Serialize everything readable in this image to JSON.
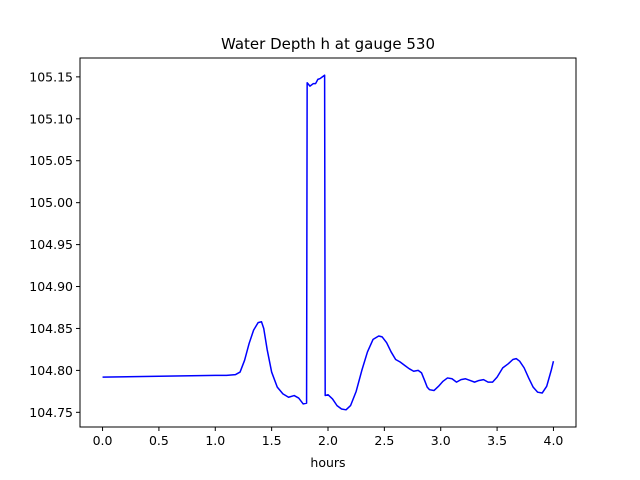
{
  "chart_data": {
    "type": "line",
    "title": "Water Depth h at gauge 530",
    "xlabel": "hours",
    "ylabel": "",
    "xlim": [
      -0.2,
      4.2
    ],
    "ylim": [
      104.7325,
      105.1725
    ],
    "xticks": [
      0.0,
      0.5,
      1.0,
      1.5,
      2.0,
      2.5,
      3.0,
      3.5,
      4.0
    ],
    "xtick_labels": [
      "0.0",
      "0.5",
      "1.0",
      "1.5",
      "2.0",
      "2.5",
      "3.0",
      "3.5",
      "4.0"
    ],
    "yticks": [
      104.75,
      104.8,
      104.85,
      104.9,
      104.95,
      105.0,
      105.05,
      105.1,
      105.15
    ],
    "ytick_labels": [
      "104.75",
      "104.80",
      "104.85",
      "104.90",
      "104.95",
      "105.00",
      "105.05",
      "105.10",
      "105.15"
    ],
    "grid": false,
    "legend": "none",
    "series": [
      {
        "color": "#0000ff",
        "x": [
          0.0,
          0.5,
          1.0,
          1.1,
          1.18,
          1.22,
          1.26,
          1.3,
          1.34,
          1.38,
          1.41,
          1.43,
          1.46,
          1.5,
          1.55,
          1.6,
          1.65,
          1.7,
          1.74,
          1.78,
          1.81,
          1.815,
          1.84,
          1.87,
          1.89,
          1.91,
          1.93,
          1.95,
          1.97,
          1.975,
          2.0,
          2.04,
          2.08,
          2.12,
          2.16,
          2.2,
          2.25,
          2.3,
          2.35,
          2.4,
          2.45,
          2.48,
          2.52,
          2.56,
          2.6,
          2.64,
          2.68,
          2.72,
          2.76,
          2.8,
          2.83,
          2.86,
          2.88,
          2.9,
          2.94,
          2.98,
          3.02,
          3.06,
          3.1,
          3.14,
          3.18,
          3.22,
          3.26,
          3.3,
          3.34,
          3.38,
          3.42,
          3.46,
          3.5,
          3.55,
          3.6,
          3.64,
          3.67,
          3.7,
          3.74,
          3.78,
          3.82,
          3.86,
          3.9,
          3.94,
          3.98,
          4.0
        ],
        "y": [
          104.792,
          104.793,
          104.794,
          104.794,
          104.795,
          104.798,
          104.812,
          104.832,
          104.848,
          104.857,
          104.858,
          104.85,
          104.825,
          104.798,
          104.78,
          104.772,
          104.768,
          104.77,
          104.767,
          104.76,
          104.761,
          105.143,
          105.139,
          105.142,
          105.142,
          105.147,
          105.148,
          105.15,
          105.152,
          104.77,
          104.771,
          104.766,
          104.758,
          104.754,
          104.753,
          104.758,
          104.775,
          104.8,
          104.822,
          104.837,
          104.841,
          104.84,
          104.833,
          104.822,
          104.813,
          104.81,
          104.806,
          104.802,
          104.799,
          104.8,
          104.797,
          104.787,
          104.78,
          104.777,
          104.776,
          104.781,
          104.787,
          104.791,
          104.79,
          104.786,
          104.789,
          104.79,
          104.788,
          104.786,
          104.788,
          104.789,
          104.786,
          104.786,
          104.792,
          104.803,
          104.808,
          104.813,
          104.814,
          104.811,
          104.803,
          104.791,
          104.78,
          104.774,
          104.773,
          104.781,
          104.8,
          104.811
        ]
      }
    ]
  }
}
